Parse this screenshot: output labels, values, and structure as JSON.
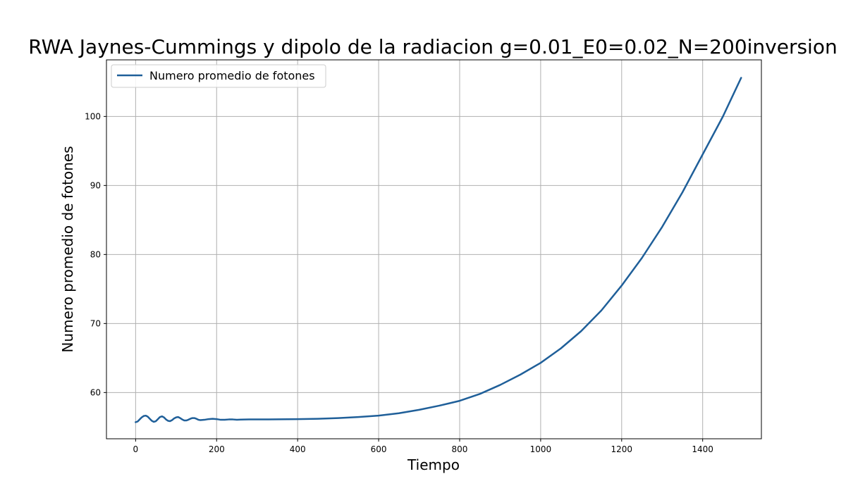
{
  "chart_data": {
    "type": "line",
    "title": "RWA Jaynes-Cummings y dipolo de la radiacion g=0.01_E0=0.02_N=200inversion",
    "xlabel": "Tiempo",
    "ylabel": "Numero promedio de fotones",
    "xlim": [
      -72,
      1545
    ],
    "ylim": [
      53.3,
      108.2
    ],
    "x_ticks": [
      0,
      200,
      400,
      600,
      800,
      1000,
      1200,
      1400
    ],
    "y_ticks": [
      60,
      70,
      80,
      90,
      100
    ],
    "grid": true,
    "legend_position": "upper-left",
    "series": [
      {
        "name": "Numero promedio de fotones",
        "color": "#1f5f99",
        "points": [
          [
            0,
            55.7
          ],
          [
            5,
            55.8
          ],
          [
            10,
            56.1
          ],
          [
            15,
            56.4
          ],
          [
            20,
            56.6
          ],
          [
            25,
            56.65
          ],
          [
            30,
            56.5
          ],
          [
            35,
            56.2
          ],
          [
            40,
            55.9
          ],
          [
            45,
            55.75
          ],
          [
            50,
            55.85
          ],
          [
            55,
            56.15
          ],
          [
            60,
            56.45
          ],
          [
            65,
            56.55
          ],
          [
            70,
            56.4
          ],
          [
            75,
            56.1
          ],
          [
            80,
            55.9
          ],
          [
            85,
            55.85
          ],
          [
            90,
            56.0
          ],
          [
            95,
            56.25
          ],
          [
            100,
            56.4
          ],
          [
            105,
            56.45
          ],
          [
            110,
            56.3
          ],
          [
            115,
            56.1
          ],
          [
            120,
            55.95
          ],
          [
            125,
            55.95
          ],
          [
            130,
            56.05
          ],
          [
            135,
            56.2
          ],
          [
            140,
            56.3
          ],
          [
            145,
            56.3
          ],
          [
            150,
            56.2
          ],
          [
            155,
            56.05
          ],
          [
            160,
            56.0
          ],
          [
            170,
            56.05
          ],
          [
            180,
            56.15
          ],
          [
            190,
            56.2
          ],
          [
            200,
            56.15
          ],
          [
            210,
            56.05
          ],
          [
            220,
            56.05
          ],
          [
            230,
            56.1
          ],
          [
            240,
            56.1
          ],
          [
            250,
            56.05
          ],
          [
            260,
            56.08
          ],
          [
            280,
            56.1
          ],
          [
            300,
            56.1
          ],
          [
            350,
            56.12
          ],
          [
            400,
            56.15
          ],
          [
            450,
            56.2
          ],
          [
            500,
            56.3
          ],
          [
            550,
            56.45
          ],
          [
            600,
            56.65
          ],
          [
            650,
            57.0
          ],
          [
            700,
            57.5
          ],
          [
            750,
            58.1
          ],
          [
            800,
            58.8
          ],
          [
            850,
            59.8
          ],
          [
            900,
            61.1
          ],
          [
            950,
            62.6
          ],
          [
            1000,
            64.3
          ],
          [
            1050,
            66.4
          ],
          [
            1100,
            68.9
          ],
          [
            1150,
            71.9
          ],
          [
            1200,
            75.5
          ],
          [
            1250,
            79.5
          ],
          [
            1300,
            84.0
          ],
          [
            1350,
            89.0
          ],
          [
            1400,
            94.5
          ],
          [
            1450,
            100.0
          ],
          [
            1495,
            105.6
          ]
        ]
      }
    ]
  }
}
